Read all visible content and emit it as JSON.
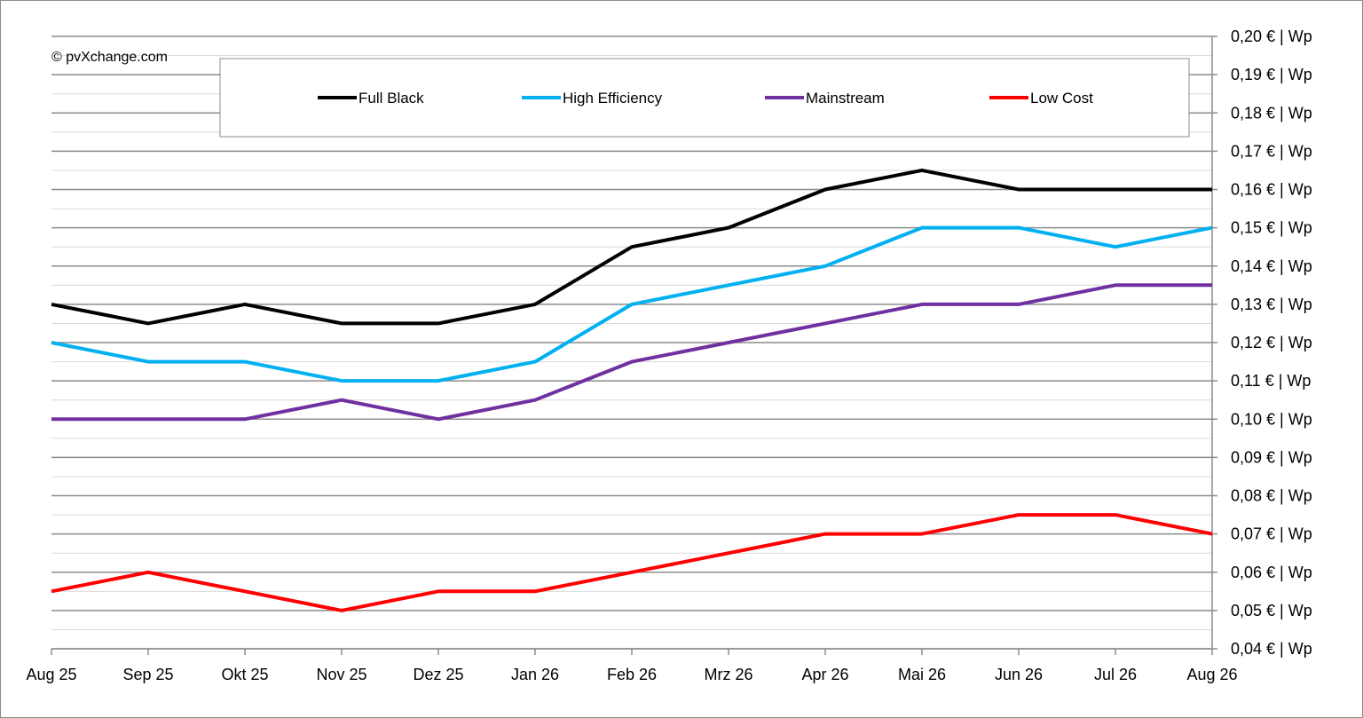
{
  "chart_data": {
    "type": "line",
    "copyright": "© pvXchange.com",
    "categories": [
      "Aug 25",
      "Sep 25",
      "Okt 25",
      "Nov 25",
      "Dez 25",
      "Jan 26",
      "Feb 26",
      "Mrz 26",
      "Apr 26",
      "Mai 26",
      "Jun 26",
      "Jul 26",
      "Aug 26"
    ],
    "y_tick_values": [
      0.04,
      0.05,
      0.06,
      0.07,
      0.08,
      0.09,
      0.1,
      0.11,
      0.12,
      0.13,
      0.14,
      0.15,
      0.16,
      0.17,
      0.18,
      0.19,
      0.2
    ],
    "y_tick_labels": [
      "0,04 € | Wp",
      "0,05 € | Wp",
      "0,06 € | Wp",
      "0,07 € | Wp",
      "0,08 € | Wp",
      "0,09 € | Wp",
      "0,10 € | Wp",
      "0,11 € | Wp",
      "0,12 € | Wp",
      "0,13 € | Wp",
      "0,14 € | Wp",
      "0,15 € | Wp",
      "0,16 € | Wp",
      "0,17 € | Wp",
      "0,18 € | Wp",
      "0,19 € | Wp",
      "0,20 € | Wp"
    ],
    "ylim": [
      0.04,
      0.2
    ],
    "y_axis_position": "right",
    "grid": true,
    "legend_position": "top",
    "series": [
      {
        "name": "Full Black",
        "color": "#000000",
        "values": [
          0.13,
          0.125,
          0.13,
          0.125,
          0.125,
          0.13,
          0.145,
          0.15,
          0.16,
          0.165,
          0.16,
          0.16,
          0.16
        ]
      },
      {
        "name": "High Efficiency",
        "color": "#00b0f0",
        "values": [
          0.12,
          0.115,
          0.115,
          0.11,
          0.11,
          0.115,
          0.13,
          0.135,
          0.14,
          0.15,
          0.15,
          0.145,
          0.15
        ]
      },
      {
        "name": "Mainstream",
        "color": "#7030a0",
        "values": [
          0.1,
          0.1,
          0.1,
          0.105,
          0.1,
          0.105,
          0.115,
          0.12,
          0.125,
          0.13,
          0.13,
          0.135,
          0.135
        ]
      },
      {
        "name": "Low Cost",
        "color": "#ff0000",
        "values": [
          0.055,
          0.06,
          0.055,
          0.05,
          0.055,
          0.055,
          0.06,
          0.065,
          0.07,
          0.07,
          0.075,
          0.075,
          0.07
        ]
      }
    ]
  }
}
